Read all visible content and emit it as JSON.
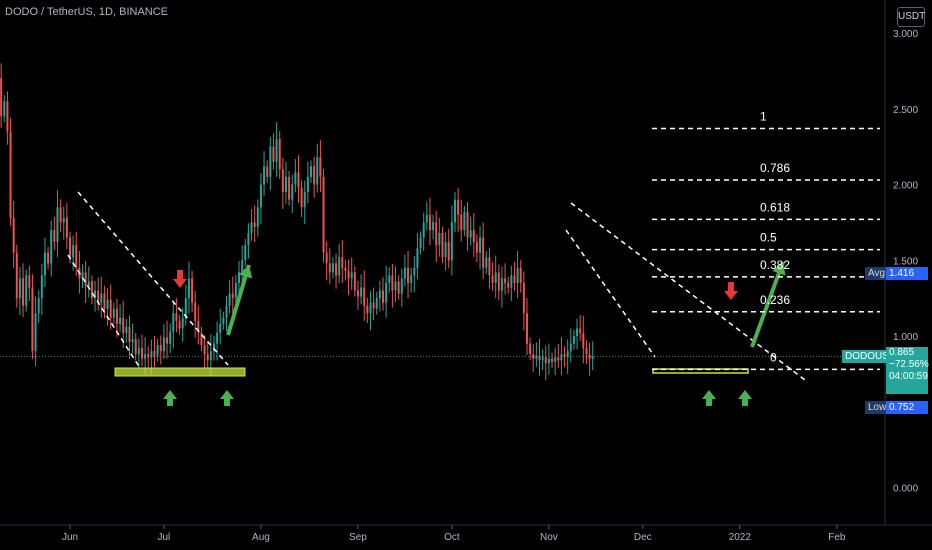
{
  "header": {
    "symbol_line": "DODO / TetherUS, 1D, BINANCE",
    "currency_button": "USDT"
  },
  "price_panel": {
    "symbol_tag": "DODOUSDT",
    "price": "0.865",
    "change": "−72.56%",
    "countdown": "04:00:59",
    "avg_label": "Avg",
    "avg_value": "1.416",
    "low_label": "Low",
    "low_value": "0.752"
  },
  "colors": {
    "background": "#000000",
    "up": "#26a69a",
    "down": "#ef5350",
    "fib_line": "#ffffff",
    "arrow_up": "#4caf50",
    "arrow_down": "#e53935",
    "support_zone": "#c8e63c"
  },
  "chart_data": {
    "type": "candlestick",
    "title": "DODO / TetherUS, 1D, BINANCE",
    "ylim": [
      0,
      3.1
    ],
    "y_ticks": [
      "3.000",
      "2.500",
      "2.000",
      "1.500",
      "1.000",
      "0.000"
    ],
    "x_ticks": [
      "Jun",
      "Jul",
      "Aug",
      "Sep",
      "Oct",
      "Nov",
      "Dec",
      "2022",
      "Feb"
    ],
    "x_tick_days": [
      0,
      30,
      61,
      92,
      122,
      153,
      183,
      214,
      245
    ],
    "first_candle_day": -28,
    "closes": [
      3.0,
      2.92,
      2.78,
      2.88,
      2.65,
      2.7,
      2.45,
      2.55,
      2.35,
      1.78,
      1.55,
      1.25,
      1.38,
      1.2,
      1.4,
      1.32,
      0.9,
      1.15,
      1.25,
      1.4,
      1.55,
      1.48,
      1.7,
      1.62,
      1.85,
      1.75,
      1.78,
      1.65,
      1.52,
      1.6,
      1.45,
      1.38,
      1.42,
      1.33,
      1.36,
      1.25,
      1.3,
      1.22,
      1.28,
      1.18,
      1.24,
      1.12,
      1.18,
      1.08,
      1.12,
      1.02,
      1.06,
      0.96,
      0.98,
      0.88,
      0.92,
      0.85,
      0.88,
      0.86,
      0.9,
      0.87,
      0.94,
      0.9,
      0.99,
      0.95,
      1.03,
      1.15,
      1.1,
      1.05,
      1.12,
      1.25,
      1.38,
      1.22,
      1.1,
      1.02,
      0.94,
      0.88,
      0.84,
      0.9,
      0.95,
      1.02,
      1.08,
      1.12,
      1.2,
      1.28,
      1.25,
      1.35,
      1.42,
      1.5,
      1.6,
      1.68,
      1.75,
      1.72,
      1.85,
      2.0,
      2.12,
      2.05,
      2.25,
      2.15,
      2.3,
      2.1,
      1.95,
      2.05,
      1.9,
      2.0,
      2.08,
      1.98,
      1.85,
      1.95,
      2.05,
      2.12,
      2.0,
      2.18,
      2.05,
      1.55,
      1.48,
      1.42,
      1.48,
      1.4,
      1.52,
      1.45,
      1.43,
      1.38,
      1.42,
      1.3,
      1.26,
      1.32,
      1.2,
      1.15,
      1.22,
      1.18,
      1.25,
      1.3,
      1.22,
      1.35,
      1.4,
      1.3,
      1.36,
      1.28,
      1.38,
      1.45,
      1.35,
      1.4,
      1.45,
      1.58,
      1.65,
      1.75,
      1.8,
      1.7,
      1.75,
      1.6,
      1.68,
      1.52,
      1.62,
      1.5,
      1.75,
      1.9,
      1.8,
      1.7,
      1.82,
      1.65,
      1.7,
      1.62,
      1.55,
      1.65,
      1.45,
      1.52,
      1.4,
      1.35,
      1.42,
      1.3,
      1.38,
      1.35,
      1.32,
      1.4,
      1.35,
      1.45,
      1.35,
      1.15,
      0.95,
      0.88,
      0.85,
      0.87,
      0.84,
      0.86,
      0.82,
      0.85,
      0.83,
      0.86,
      0.84,
      0.88,
      0.86,
      0.9,
      0.95,
      1.0,
      1.05,
      1.02,
      0.92,
      0.88,
      0.85,
      0.865
    ],
    "fib_levels": [
      {
        "label": "1",
        "value": 2.37
      },
      {
        "label": "0.786",
        "value": 2.03
      },
      {
        "label": "0.618",
        "value": 1.77
      },
      {
        "label": "0.5",
        "value": 1.57
      },
      {
        "label": "0.382",
        "value": 1.39
      },
      {
        "label": "0.236",
        "value": 1.16
      },
      {
        "label": "0",
        "value": 0.78
      }
    ],
    "current_price": 0.865,
    "avg": 1.416,
    "low": 0.752
  }
}
